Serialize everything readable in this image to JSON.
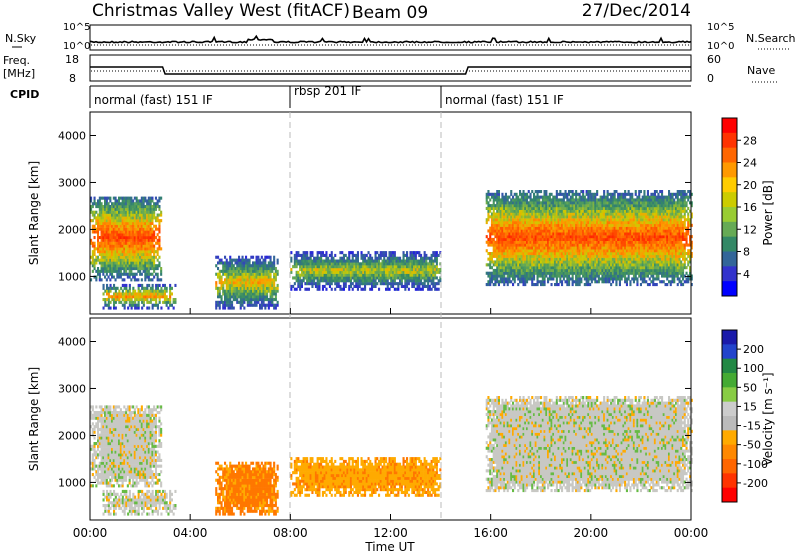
{
  "header": {
    "title": "Christmas Valley West (fitACF)",
    "beam": "Beam 09",
    "date": "27/Dec/2014"
  },
  "top_panels": {
    "nsky_label": "N.Sky",
    "nsky_ticks": [
      "10^5",
      "10^0"
    ],
    "nsearch_label": "N.Search",
    "nsearch_ticks": [
      "10^5",
      "10^0"
    ],
    "freq_label": "Freq.",
    "freq_unit": "[MHz]",
    "freq_ticks": [
      "18",
      "8"
    ],
    "nave_label": "Nave",
    "nave_ticks": [
      "60",
      "0"
    ],
    "cpid_label": "CPID",
    "cpid_segments": [
      {
        "label": "normal (fast) 151 IF",
        "start_hour": 0,
        "end_hour": 8
      },
      {
        "label": "rbsp 201 IF",
        "start_hour": 8,
        "end_hour": 14
      },
      {
        "label": "normal (fast) 151 IF",
        "start_hour": 14,
        "end_hour": 24
      }
    ]
  },
  "power_panel": {
    "ylabel": "Slant Range [km]",
    "colorbar_label": "Power [dB]",
    "colorbar_ticks": [
      "28",
      "24",
      "20",
      "16",
      "12",
      "8",
      "4"
    ],
    "colorbar_colors": [
      "#ff0000",
      "#ff3300",
      "#ff6600",
      "#ff9900",
      "#ffcc00",
      "#cccc00",
      "#99cc33",
      "#66aa55",
      "#338866",
      "#336699",
      "#3333cc",
      "#0000ff"
    ]
  },
  "velocity_panel": {
    "ylabel": "Slant Range [km]",
    "colorbar_label": "Velocity [m s⁻¹]",
    "colorbar_ticks": [
      "200",
      "100",
      "50",
      "15",
      "-15",
      "-50",
      "-100",
      "-200"
    ],
    "colorbar_colors": [
      "#1a1aaa",
      "#2244cc",
      "#228844",
      "#44aa33",
      "#88cc44",
      "#cccccc",
      "#bbbbbb",
      "#ffaa00",
      "#ff8800",
      "#ff6600",
      "#ff3300",
      "#ff0000"
    ]
  },
  "xaxis": {
    "label": "Time UT",
    "ticks": [
      "00:00",
      "04:00",
      "08:00",
      "12:00",
      "16:00",
      "20:00",
      "00:00"
    ]
  },
  "chart_data": [
    {
      "type": "line",
      "name": "Transmit frequency",
      "ylabel": "Freq. [MHz]",
      "ylim": [
        8,
        18
      ],
      "x_hours": [
        0,
        2.9,
        3.0,
        15.0,
        15.1,
        24
      ],
      "values": [
        13.4,
        13.4,
        10.7,
        10.7,
        13.4,
        13.4
      ]
    },
    {
      "type": "heatmap",
      "title": "Power [dB]",
      "xlabel": "Time UT",
      "ylabel": "Slant Range [km]",
      "xlim_hours": [
        0,
        24
      ],
      "ylim_km": [
        200,
        4500
      ],
      "clim_db": [
        0,
        32
      ],
      "regions": [
        {
          "t0": 0,
          "t1": 2.8,
          "r0": 900,
          "r1": 2700,
          "peak_db": 30
        },
        {
          "t0": 0.5,
          "t1": 3.4,
          "r0": 300,
          "r1": 800,
          "peak_db": 26
        },
        {
          "t0": 5.0,
          "t1": 7.5,
          "r0": 300,
          "r1": 1400,
          "peak_db": 24
        },
        {
          "t0": 8.0,
          "t1": 14.0,
          "r0": 700,
          "r1": 1500,
          "peak_db": 22
        },
        {
          "t0": 15.8,
          "t1": 24,
          "r0": 800,
          "r1": 2800,
          "peak_db": 30
        }
      ]
    },
    {
      "type": "heatmap",
      "title": "Velocity [m s⁻¹]",
      "xlabel": "Time UT",
      "ylabel": "Slant Range [km]",
      "xlim_hours": [
        0,
        24
      ],
      "ylim_km": [
        200,
        4500
      ],
      "clim_ms": [
        -200,
        200
      ],
      "regions": [
        {
          "t0": 0,
          "t1": 2.8,
          "r0": 900,
          "r1": 2600,
          "velocity": 0
        },
        {
          "t0": 0.5,
          "t1": 3.4,
          "r0": 300,
          "r1": 800,
          "velocity": 0
        },
        {
          "t0": 5.0,
          "t1": 7.5,
          "r0": 300,
          "r1": 1400,
          "velocity": -60
        },
        {
          "t0": 8.0,
          "t1": 14.0,
          "r0": 700,
          "r1": 1500,
          "velocity": -40
        },
        {
          "t0": 15.8,
          "t1": 24,
          "r0": 800,
          "r1": 2800,
          "velocity": 0
        }
      ]
    }
  ]
}
